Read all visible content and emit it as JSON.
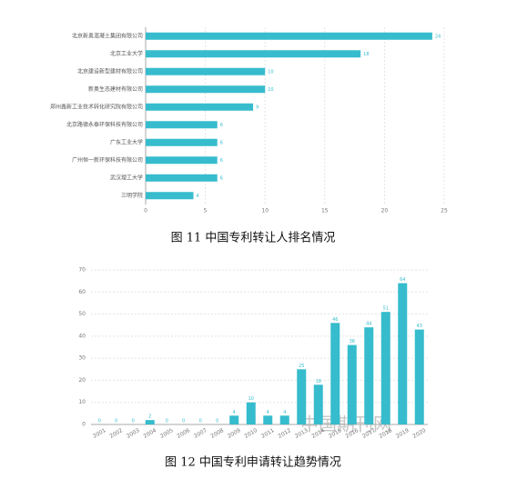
{
  "chart_data": [
    {
      "type": "bar",
      "horizontal": true,
      "title": "图 11 中国专利转让人排名情况",
      "color": "#36bccd",
      "categories": [
        "北京新奥混凝土集团有限公司",
        "北京工业大学",
        "北京建设新型建材有限公司",
        "新奥生态建材有限公司",
        "郑州鑫新工业技术转化研究院有限公司",
        "北京路德永泰环保科技有限公司",
        "广东工业大学",
        "广州恒一新环保科技有限公司",
        "武汉理工大学",
        "三明学院"
      ],
      "values": [
        24,
        18,
        10,
        10,
        9,
        6,
        6,
        6,
        6,
        4
      ],
      "xlim": [
        0,
        25
      ],
      "xticks": [
        0,
        5,
        10,
        15,
        20,
        25
      ],
      "grid": true
    },
    {
      "type": "bar",
      "horizontal": false,
      "title": "图 12 中国专利申请转让趋势情况",
      "color": "#36bccd",
      "categories": [
        "2001",
        "2002",
        "2003",
        "2004",
        "2005",
        "2006",
        "2007",
        "2008",
        "2009",
        "2010",
        "2011",
        "2012",
        "2013",
        "2014",
        "2015",
        "2016",
        "2017",
        "2018",
        "2019",
        "2020"
      ],
      "values": [
        0,
        0,
        0,
        2,
        0,
        0,
        0,
        0,
        4,
        10,
        4,
        4,
        25,
        18,
        46,
        36,
        44,
        51,
        64,
        43
      ],
      "ylim": [
        0,
        70
      ],
      "yticks": [
        0,
        10,
        20,
        30,
        40,
        50,
        60,
        70
      ],
      "grid": true
    }
  ],
  "watermark": "中国期刊网"
}
